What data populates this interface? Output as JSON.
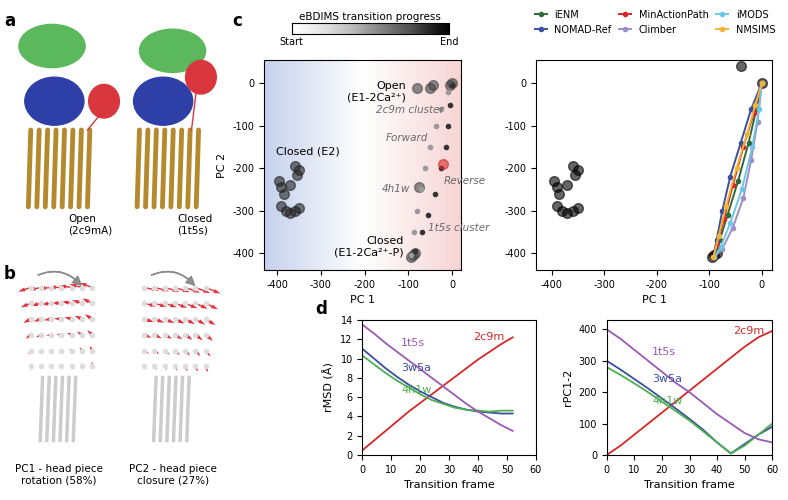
{
  "panel_letters": [
    "a",
    "b",
    "c",
    "d"
  ],
  "structures": {
    "a": [
      "Open\n(2c9mA)",
      "Closed\n(1t5s)"
    ],
    "b": [
      "PC1 - head piece\nrotation (58%)",
      "PC2 - head piece\nclosure (27%)"
    ]
  },
  "chart_data": [
    {
      "type": "scatter",
      "colorbar": {
        "title": "eBDIMS transition progress",
        "ticks": [
          "Start",
          "End"
        ]
      },
      "x_label": "PC 1",
      "y_label": "PC 2",
      "xlim": [
        -430,
        20
      ],
      "ylim": [
        -440,
        55
      ],
      "xticks": [
        -400,
        -300,
        -200,
        -100,
        0
      ],
      "yticks": [
        -400,
        -300,
        -200,
        -100,
        0
      ],
      "series": [
        {
          "color": "#222222",
          "marker": "circle",
          "x": [
            -395,
            -390,
            -385,
            -370,
            -360,
            -355,
            -350,
            -380,
            -370,
            -360,
            -350,
            -390
          ],
          "values": [
            -230,
            -245,
            -260,
            -240,
            -195,
            -215,
            -205,
            -300,
            -305,
            -300,
            -295,
            -290
          ]
        },
        {
          "color": "#444444",
          "marker": "circle",
          "x": [
            0,
            -5,
            -50,
            -45,
            -80,
            -90,
            -95,
            -85,
            -75
          ],
          "values": [
            0,
            -5,
            -10,
            -5,
            -10,
            -405,
            -410,
            -400,
            -245
          ]
        },
        {
          "color": "#333333",
          "marker": "dot",
          "x": [
            0,
            -5,
            -10,
            -15,
            -25,
            -40,
            -55,
            -70,
            -85
          ],
          "values": [
            -5,
            -50,
            -100,
            -150,
            -200,
            -260,
            -310,
            -350,
            -395
          ]
        },
        {
          "color": "#9a9a9a",
          "marker": "dot",
          "x": [
            -95,
            -88,
            -80,
            -72,
            -62,
            -50,
            -38,
            -25,
            -10
          ],
          "values": [
            -405,
            -350,
            -300,
            -250,
            -200,
            -150,
            -100,
            -60,
            -20
          ]
        },
        {
          "color": "#d62728",
          "marker": "circle",
          "x": [
            -20
          ],
          "values": [
            -190
          ]
        }
      ],
      "annotations": [
        {
          "text": "Open\n(E1-2Ca²⁺)",
          "x": -105,
          "y": -20
        },
        {
          "text": "Closed (E2)",
          "x": -330,
          "y": -160
        },
        {
          "text": "Closed\n(E1-2Ca²⁺-P)",
          "x": -110,
          "y": -385
        },
        {
          "text": "2c9m cluster",
          "x": -20,
          "y": -62
        },
        {
          "text": "Forward",
          "x": -55,
          "y": -130
        },
        {
          "text": "4h1w",
          "x": -95,
          "y": -250
        },
        {
          "text": "Reverse",
          "x": -20,
          "y": -230
        },
        {
          "text": "1t5s cluster",
          "x": -55,
          "y": -340
        }
      ]
    },
    {
      "type": "scatter",
      "legend": "upper right",
      "xlim": [
        -430,
        20
      ],
      "ylim": [
        -440,
        55
      ],
      "xticks": [
        -400,
        -300,
        -200,
        -100,
        0
      ],
      "yticks": [
        -400,
        -300,
        -200,
        -100,
        0
      ],
      "x_label": "PC 1",
      "series": [
        {
          "color": "#000000",
          "marker": "circle",
          "x": [
            -395,
            -390,
            -385,
            -370,
            -360,
            -355,
            -350,
            -380,
            -370,
            -360,
            -350,
            -390,
            0,
            -40,
            -90,
            -95,
            -85
          ],
          "values": [
            -230,
            -245,
            -260,
            -240,
            -195,
            -215,
            -205,
            -300,
            -305,
            -300,
            -295,
            -290,
            0,
            40,
            -405,
            -410,
            -400
          ]
        },
        {
          "name": "iENM",
          "color": "#2e6b3a",
          "marker": "dot",
          "line_style": "solid",
          "x": [
            0,
            -10,
            -25,
            -45,
            -65,
            -80,
            -90
          ],
          "values": [
            0,
            -60,
            -140,
            -230,
            -310,
            -370,
            -410
          ]
        },
        {
          "name": "NOMAD-Ref",
          "color": "#3a4fa0",
          "marker": "dot",
          "line_style": "solid",
          "x": [
            0,
            -20,
            -40,
            -60,
            -75,
            -86,
            -92
          ],
          "values": [
            0,
            -60,
            -140,
            -220,
            -300,
            -370,
            -410
          ]
        },
        {
          "name": "MinActionPath",
          "color": "#d62728",
          "marker": "dot",
          "line_style": "solid",
          "x": [
            0,
            -15,
            -35,
            -55,
            -72,
            -85,
            -92
          ],
          "values": [
            0,
            -70,
            -150,
            -240,
            -320,
            -380,
            -410
          ]
        },
        {
          "name": "Climber",
          "color": "#9b8fc7",
          "marker": "dot",
          "line_style": "solid",
          "x": [
            0,
            -8,
            -20,
            -35,
            -55,
            -75,
            -90
          ],
          "values": [
            0,
            -90,
            -180,
            -270,
            -340,
            -390,
            -410
          ]
        },
        {
          "name": "iMODS",
          "color": "#6ec6e6",
          "marker": "dot",
          "line_style": "solid",
          "x": [
            0,
            -5,
            -18,
            -38,
            -60,
            -78,
            -90
          ],
          "values": [
            0,
            -60,
            -150,
            -250,
            -330,
            -385,
            -410
          ]
        },
        {
          "name": "NMSIMS",
          "color": "#f5b335",
          "marker": "dot",
          "line_style": "solid",
          "x": [
            0,
            -12,
            -28,
            -48,
            -68,
            -82,
            -92
          ],
          "values": [
            0,
            -50,
            -120,
            -200,
            -290,
            -360,
            -410
          ]
        }
      ]
    },
    {
      "type": "line",
      "x_label": "Transition frame",
      "y_label": "rMSD (Å)",
      "xlim": [
        0,
        60
      ],
      "xticks": [
        0,
        10,
        20,
        30,
        40,
        50,
        60
      ],
      "ylim": [
        0,
        14
      ],
      "yticks": [
        0,
        2,
        4,
        6,
        8,
        10,
        12,
        14
      ],
      "x": [
        0,
        4,
        8,
        12,
        16,
        20,
        24,
        28,
        32,
        36,
        40,
        44,
        48,
        52
      ],
      "series": [
        {
          "name": "2c9m",
          "color": "#d62728",
          "values": [
            0.5,
            1.5,
            2.5,
            3.5,
            4.5,
            5.4,
            6.3,
            7.2,
            8.1,
            9.0,
            9.9,
            10.7,
            11.5,
            12.2
          ]
        },
        {
          "name": "3w5a",
          "color": "#3a4fa0",
          "values": [
            11.0,
            10.0,
            9.0,
            8.1,
            7.3,
            6.6,
            6.0,
            5.4,
            5.0,
            4.7,
            4.5,
            4.4,
            4.3,
            4.3
          ]
        },
        {
          "name": "4h1w",
          "color": "#4caf50",
          "values": [
            10.3,
            9.4,
            8.5,
            7.7,
            7.0,
            6.3,
            5.7,
            5.3,
            4.9,
            4.7,
            4.6,
            4.5,
            4.6,
            4.6
          ]
        },
        {
          "name": "1t5s",
          "color": "#9b59b6",
          "values": [
            13.5,
            12.6,
            11.6,
            10.7,
            9.8,
            8.9,
            8.0,
            7.1,
            6.2,
            5.3,
            4.5,
            3.8,
            3.1,
            2.5
          ]
        }
      ]
    },
    {
      "type": "line",
      "x_label": "Transition frame",
      "y_label": "rPC1-2",
      "xlim": [
        0,
        60
      ],
      "xticks": [
        0,
        10,
        20,
        30,
        40,
        50,
        60
      ],
      "ylim": [
        0,
        430
      ],
      "yticks": [
        0,
        100,
        200,
        300,
        400
      ],
      "x": [
        0,
        5,
        10,
        15,
        20,
        25,
        30,
        35,
        40,
        45,
        50,
        55,
        60
      ],
      "series": [
        {
          "name": "2c9m",
          "color": "#d62728",
          "values": [
            0,
            30,
            65,
            100,
            135,
            170,
            205,
            240,
            275,
            310,
            345,
            375,
            395
          ]
        },
        {
          "name": "3w5a",
          "color": "#3a4fa0",
          "values": [
            300,
            272,
            242,
            212,
            180,
            148,
            115,
            80,
            40,
            5,
            35,
            65,
            90
          ]
        },
        {
          "name": "4h1w",
          "color": "#4caf50",
          "values": [
            280,
            255,
            228,
            200,
            170,
            140,
            110,
            75,
            40,
            5,
            30,
            65,
            100
          ]
        },
        {
          "name": "1t5s",
          "color": "#9b59b6",
          "values": [
            400,
            370,
            335,
            300,
            265,
            230,
            200,
            165,
            130,
            100,
            70,
            50,
            40
          ]
        }
      ]
    }
  ]
}
